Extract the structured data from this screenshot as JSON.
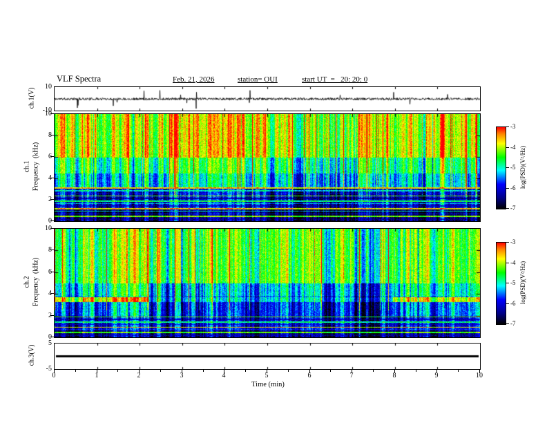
{
  "header": {
    "title": "VLF Spectra",
    "date": "Feb. 21, 2026",
    "station": "station= OUI",
    "start_ut": "start UT  =   20: 20: 0"
  },
  "xaxis": {
    "label": "Time  (min)",
    "ticks": [
      "0",
      "1",
      "2",
      "3",
      "4",
      "5",
      "6",
      "7",
      "8",
      "9",
      "10"
    ]
  },
  "colorbar": {
    "label": "log(PSD)(V²/Hz)",
    "ticks": [
      "-3",
      "-4",
      "-5",
      "-6",
      "-7"
    ],
    "stops": [
      [
        0,
        "#000000"
      ],
      [
        0.13,
        "#000085"
      ],
      [
        0.3,
        "#0000ff"
      ],
      [
        0.47,
        "#00ffff"
      ],
      [
        0.63,
        "#00ff00"
      ],
      [
        0.8,
        "#ffff00"
      ],
      [
        0.92,
        "#ff8000"
      ],
      [
        1,
        "#ff0000"
      ]
    ]
  },
  "chart_data": [
    {
      "id": "ch1_waveform",
      "type": "line",
      "ylabel": "ch.1(V)",
      "xlim": [
        0,
        10
      ],
      "ylim": [
        -10,
        10
      ],
      "ytick_labels": [
        "10",
        "-10"
      ],
      "description": "Broadband noise centered on 0 V (about ±1 V) with sparse impulsive spikes reaching ±9 V over the 10-minute record",
      "noise_amp": 1.1,
      "spike_prob": 0.012,
      "seed": 11
    },
    {
      "id": "ch1_spectrogram",
      "type": "heatmap",
      "channel_label": "ch.1",
      "ylabel": "Frequency  (kHz)",
      "xlim": [
        0,
        10
      ],
      "ylim": [
        0,
        10
      ],
      "ytick_labels": [
        "0",
        "2",
        "4",
        "6",
        "8",
        "10"
      ],
      "zlabel": "log(PSD)(V²/Hz)",
      "zlim_log_psd": [
        -7,
        -3
      ],
      "description": "Strong broadband VLF hiss: high PSD (yellow/red, ~-3.5) above 6 kHz with vertical sferic streaks, medium (green/cyan, ~-4.5) 3-6 kHz, low (blue/black, ~-6.5) below 3 kHz crossed by narrow horizontal interference lines",
      "bands": [
        {
          "f0": 6.0,
          "f1": 10.0,
          "v": 0.78
        },
        {
          "f0": 4.5,
          "f1": 6.0,
          "v": 0.6
        },
        {
          "f0": 3.2,
          "f1": 4.5,
          "v": 0.48
        },
        {
          "f0": 1.2,
          "f1": 3.2,
          "v": 0.25
        },
        {
          "f0": 0.0,
          "f1": 1.2,
          "v": 0.12
        }
      ],
      "features": [],
      "hlines": {
        "fmax": 3.3,
        "spacing": 0.24,
        "values": [
          0.6,
          0.15,
          0.72,
          0.28,
          0.5,
          0.85,
          0.2,
          0.45
        ]
      },
      "streak_prob": 0.035,
      "seed": 23
    },
    {
      "id": "ch2_spectrogram",
      "type": "heatmap",
      "channel_label": "ch.2",
      "ylabel": "Frequency  (kHz)",
      "xlim": [
        0,
        10
      ],
      "ylim": [
        0,
        10
      ],
      "ytick_labels": [
        "0",
        "2",
        "4",
        "6",
        "8",
        "10"
      ],
      "zlabel": "log(PSD)(V²/Hz)",
      "zlim_log_psd": [
        -7,
        -3
      ],
      "description": "Green/yellow hiss above 5 kHz with vertical sferic streaks; bright narrowband emission near 3.5 kHz from 0-2.2 min and 8-10 min, fainter in between; darker blue 2-5 kHz mid-interval; dark low band with horizontal interference lines below 2 kHz",
      "bands": [
        {
          "f0": 5.0,
          "f1": 10.0,
          "v": 0.64
        },
        {
          "f0": 3.8,
          "f1": 5.0,
          "v": 0.5
        },
        {
          "f0": 2.0,
          "f1": 3.8,
          "v": 0.36
        },
        {
          "f0": 0.8,
          "f1": 2.0,
          "v": 0.24
        },
        {
          "f0": 0.0,
          "f1": 0.8,
          "v": 0.12
        }
      ],
      "features": [
        {
          "f0": 3.7,
          "f1": 5.0,
          "x0": 2.2,
          "x1": 7.95,
          "dv": -0.08
        },
        {
          "f0": 2.0,
          "f1": 3.25,
          "x0": 2.2,
          "x1": 7.95,
          "dv": -0.08
        },
        {
          "f0": 3.25,
          "f1": 3.7,
          "x0": 0,
          "x1": 2.2,
          "v": 0.8
        },
        {
          "f0": 3.25,
          "f1": 3.7,
          "x0": 7.95,
          "x1": 10,
          "v": 0.76
        },
        {
          "f0": 3.25,
          "f1": 3.7,
          "x0": 2.2,
          "x1": 7.95,
          "v": 0.44
        }
      ],
      "hlines": {
        "fmax": 2.0,
        "spacing": 0.24,
        "values": [
          0.55,
          0.18,
          0.68,
          0.3,
          0.82,
          0.22
        ]
      },
      "streak_prob": 0.03,
      "seed": 37
    },
    {
      "id": "ch3_waveform",
      "type": "line",
      "ylabel": "ch.3(V)",
      "xlim": [
        0,
        10
      ],
      "ylim": [
        -5,
        5
      ],
      "ytick_labels": [
        "5",
        "-5"
      ],
      "description": "Flat line at 0 V for the entire interval (channel off / no signal)",
      "constant_value": 0,
      "seed": 5
    }
  ]
}
